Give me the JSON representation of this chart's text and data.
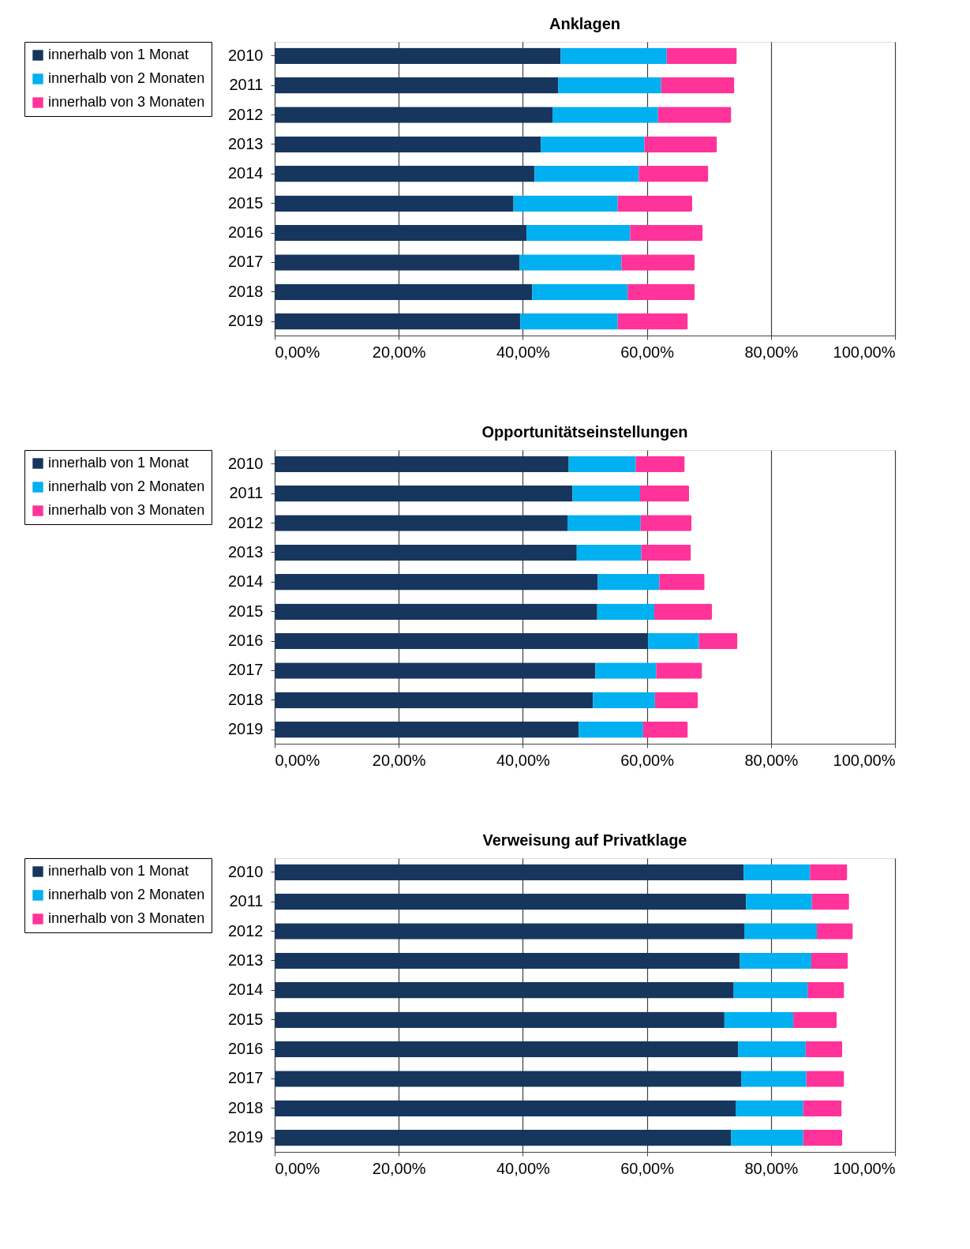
{
  "chart_data": [
    {
      "type": "bar",
      "orientation": "horizontal",
      "stacked": true,
      "title": "Anklagen",
      "legend": "top left",
      "grid": "x",
      "categories": [
        "2010",
        "2011",
        "2012",
        "2013",
        "2014",
        "2015",
        "2016",
        "2017",
        "2018",
        "2019"
      ],
      "xlim": [
        0,
        100
      ],
      "xticks": [
        {
          "value": 0,
          "label": "0,00%"
        },
        {
          "value": 20,
          "label": "20,00%"
        },
        {
          "value": 40,
          "label": "40,00%"
        },
        {
          "value": 60,
          "label": "60,00%"
        },
        {
          "value": 80,
          "label": "80,00%"
        },
        {
          "value": 100,
          "label": "100,00%"
        }
      ],
      "series": [
        {
          "name": "innerhalb von 1 Monat",
          "color": "#17365d",
          "values": [
            46.1,
            45.7,
            44.8,
            42.9,
            41.9,
            38.5,
            40.6,
            39.5,
            41.5,
            39.6
          ]
        },
        {
          "name": "innerhalb von 2 Monaten",
          "color": "#00b0f0",
          "values": [
            17.1,
            16.6,
            17.0,
            16.7,
            16.8,
            16.8,
            16.7,
            16.4,
            15.4,
            15.7
          ]
        },
        {
          "name": "innerhalb von 3 Monaten",
          "color": "#ff3399",
          "values": [
            11.3,
            11.8,
            11.8,
            11.7,
            11.2,
            12.0,
            11.7,
            11.8,
            10.8,
            11.3
          ]
        }
      ]
    },
    {
      "type": "bar",
      "orientation": "horizontal",
      "stacked": true,
      "title": "Opportunitätseinstellungen",
      "legend": "top left",
      "grid": "x",
      "categories": [
        "2010",
        "2011",
        "2012",
        "2013",
        "2014",
        "2015",
        "2016",
        "2017",
        "2018",
        "2019"
      ],
      "xlim": [
        0,
        100
      ],
      "xticks": [
        {
          "value": 0,
          "label": "0,00%"
        },
        {
          "value": 20,
          "label": "20,00%"
        },
        {
          "value": 40,
          "label": "40,00%"
        },
        {
          "value": 60,
          "label": "60,00%"
        },
        {
          "value": 80,
          "label": "80,00%"
        },
        {
          "value": 100,
          "label": "100,00%"
        }
      ],
      "series": [
        {
          "name": "innerhalb von 1 Monat",
          "color": "#17365d",
          "values": [
            47.4,
            48.0,
            47.2,
            48.7,
            52.1,
            52.0,
            60.2,
            51.7,
            51.3,
            49.0
          ]
        },
        {
          "name": "innerhalb von 2 Monaten",
          "color": "#00b0f0",
          "values": [
            10.8,
            10.9,
            11.8,
            10.4,
            9.9,
            9.2,
            8.2,
            9.8,
            10.0,
            10.4
          ]
        },
        {
          "name": "innerhalb von 3 Monaten",
          "color": "#ff3399",
          "values": [
            7.9,
            7.9,
            8.2,
            8.0,
            7.3,
            9.3,
            6.2,
            7.4,
            6.9,
            7.2
          ]
        }
      ]
    },
    {
      "type": "bar",
      "orientation": "horizontal",
      "stacked": true,
      "title": "Verweisung auf Privatklage",
      "legend": "top left",
      "grid": "x",
      "categories": [
        "2010",
        "2011",
        "2012",
        "2013",
        "2014",
        "2015",
        "2016",
        "2017",
        "2018",
        "2019"
      ],
      "xlim": [
        0,
        100
      ],
      "xticks": [
        {
          "value": 0,
          "label": "0,00%"
        },
        {
          "value": 20,
          "label": "20,00%"
        },
        {
          "value": 40,
          "label": "40,00%"
        },
        {
          "value": 60,
          "label": "60,00%"
        },
        {
          "value": 80,
          "label": "80,00%"
        },
        {
          "value": 100,
          "label": "100,00%"
        }
      ],
      "series": [
        {
          "name": "innerhalb von 1 Monat",
          "color": "#17365d",
          "values": [
            75.6,
            76.0,
            75.7,
            75.0,
            74.0,
            72.5,
            74.7,
            75.2,
            74.3,
            73.6
          ]
        },
        {
          "name": "innerhalb von 2 Monaten",
          "color": "#00b0f0",
          "values": [
            10.7,
            10.6,
            11.7,
            11.5,
            11.9,
            11.1,
            10.9,
            10.5,
            10.9,
            11.6
          ]
        },
        {
          "name": "innerhalb von 3 Monaten",
          "color": "#ff3399",
          "values": [
            6.0,
            6.0,
            5.8,
            5.9,
            5.9,
            7.0,
            5.9,
            6.1,
            6.2,
            6.3
          ]
        }
      ]
    }
  ]
}
